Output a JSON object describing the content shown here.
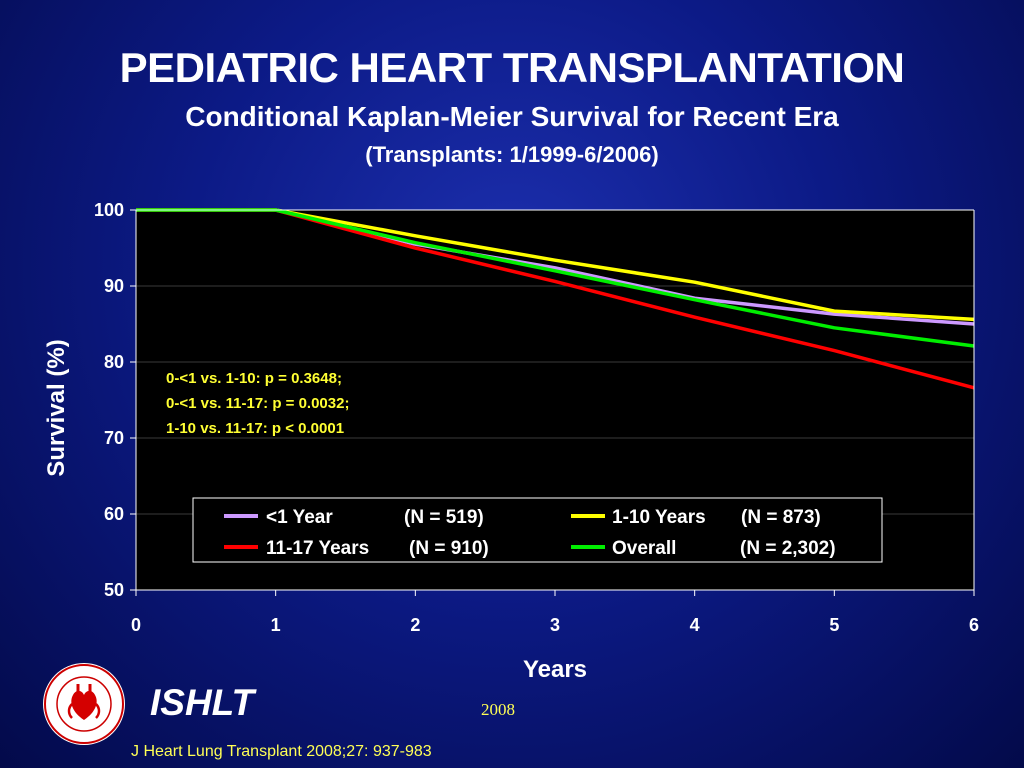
{
  "slide": {
    "title": "PEDIATRIC HEART TRANSPLANTATION",
    "subtitle": "Conditional Kaplan-Meier Survival for Recent Era",
    "subtitle2": "(Transplants: 1/1999-6/2006)",
    "logo_name": "ISHLT",
    "year": "2008",
    "citation": "J Heart Lung Transplant 2008;27: 937-983"
  },
  "chart_data": {
    "type": "line",
    "xlabel": "Years",
    "ylabel": "Survival (%)",
    "xlim": [
      0,
      6
    ],
    "ylim": [
      50,
      100
    ],
    "x_ticks": [
      "0",
      "1",
      "2",
      "3",
      "4",
      "5",
      "6"
    ],
    "y_ticks": [
      "100",
      "90",
      "80",
      "70",
      "60",
      "50"
    ],
    "grid": "horizontal",
    "legend_placement": "bottom-center",
    "annotations": [
      "0-<1 vs. 1-10: p = 0.3648;",
      "0-<1 vs. 11-17: p = 0.0032;",
      "1-10 vs. 11-17: p < 0.0001"
    ],
    "series": [
      {
        "name": "<1 Year",
        "n_label": "(N = 519)",
        "color": "#cc99ff",
        "x": [
          0,
          1,
          2,
          3,
          4,
          5,
          6
        ],
        "y": [
          100,
          100,
          95.5,
          92.4,
          88.4,
          86.3,
          85.0
        ]
      },
      {
        "name": "1-10 Years",
        "n_label": "(N = 873)",
        "color": "#ffff00",
        "x": [
          0,
          1,
          2,
          3,
          4,
          5,
          6
        ],
        "y": [
          100,
          100,
          96.6,
          93.4,
          90.5,
          86.7,
          85.6
        ]
      },
      {
        "name": "11-17 Years",
        "n_label": "(N = 910)",
        "color": "#ff0000",
        "x": [
          0,
          1,
          2,
          3,
          4,
          5,
          6
        ],
        "y": [
          100,
          100,
          95.0,
          90.6,
          85.9,
          81.5,
          76.6
        ]
      },
      {
        "name": "Overall",
        "n_label": "(N = 2,302)",
        "color": "#00ee00",
        "x": [
          0,
          1,
          2,
          3,
          4,
          5,
          6
        ],
        "y": [
          100,
          100,
          95.7,
          92.0,
          88.2,
          84.5,
          82.1
        ]
      }
    ]
  }
}
